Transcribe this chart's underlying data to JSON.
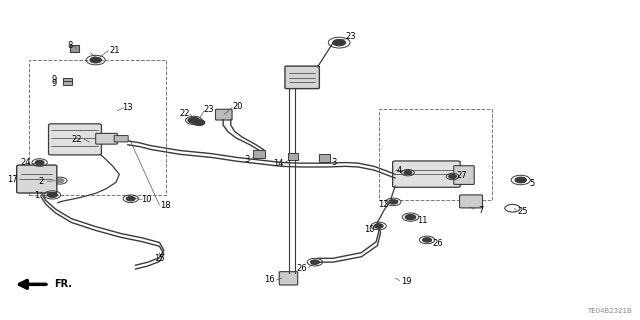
{
  "bg_color": "#ffffff",
  "line_color": "#3a3a3a",
  "diagram_code": "TE04B2321B",
  "label_lines": [
    [
      "8",
      [
        0.12,
        0.148
      ],
      [
        0.128,
        0.135
      ]
    ],
    [
      "21",
      [
        0.178,
        0.148
      ],
      [
        0.168,
        0.135
      ]
    ],
    [
      "9",
      [
        0.093,
        0.225
      ],
      [
        0.105,
        0.23
      ]
    ],
    [
      "9",
      [
        0.093,
        0.245
      ],
      [
        0.108,
        0.248
      ]
    ],
    [
      "13",
      [
        0.178,
        0.31
      ],
      [
        0.168,
        0.32
      ]
    ],
    [
      "1",
      [
        0.068,
        0.385
      ],
      [
        0.082,
        0.388
      ]
    ],
    [
      "10",
      [
        0.215,
        0.375
      ],
      [
        0.205,
        0.382
      ]
    ],
    [
      "2",
      [
        0.075,
        0.435
      ],
      [
        0.09,
        0.432
      ]
    ],
    [
      "18",
      [
        0.248,
        0.358
      ],
      [
        0.238,
        0.365
      ]
    ],
    [
      "24",
      [
        0.042,
        0.49
      ],
      [
        0.06,
        0.492
      ]
    ],
    [
      "17",
      [
        0.04,
        0.56
      ],
      [
        0.06,
        0.558
      ]
    ],
    [
      "22",
      [
        0.152,
        0.558
      ],
      [
        0.142,
        0.552
      ]
    ],
    [
      "15",
      [
        0.248,
        0.718
      ],
      [
        0.248,
        0.705
      ]
    ],
    [
      "22",
      [
        0.298,
        0.635
      ],
      [
        0.302,
        0.625
      ]
    ],
    [
      "23",
      [
        0.308,
        0.608
      ],
      [
        0.31,
        0.618
      ]
    ],
    [
      "20",
      [
        0.36,
        0.645
      ],
      [
        0.348,
        0.638
      ]
    ],
    [
      "3",
      [
        0.405,
        0.528
      ],
      [
        0.408,
        0.518
      ]
    ],
    [
      "14",
      [
        0.462,
        0.488
      ],
      [
        0.462,
        0.5
      ]
    ],
    [
      "3",
      [
        0.51,
        0.518
      ],
      [
        0.51,
        0.508
      ]
    ],
    [
      "16",
      [
        0.44,
        0.108
      ],
      [
        0.452,
        0.118
      ]
    ],
    [
      "23",
      [
        0.53,
        0.048
      ],
      [
        0.528,
        0.062
      ]
    ],
    [
      "26",
      [
        0.49,
        0.165
      ],
      [
        0.492,
        0.178
      ]
    ],
    [
      "19",
      [
        0.618,
        0.118
      ],
      [
        0.61,
        0.13
      ]
    ],
    [
      "10",
      [
        0.598,
        0.28
      ],
      [
        0.592,
        0.292
      ]
    ],
    [
      "26",
      [
        0.672,
        0.238
      ],
      [
        0.665,
        0.248
      ]
    ],
    [
      "11",
      [
        0.648,
        0.31
      ],
      [
        0.64,
        0.318
      ]
    ],
    [
      "12",
      [
        0.612,
        0.368
      ],
      [
        0.618,
        0.378
      ]
    ],
    [
      "7",
      [
        0.738,
        0.355
      ],
      [
        0.728,
        0.362
      ]
    ],
    [
      "25",
      [
        0.808,
        0.348
      ],
      [
        0.8,
        0.355
      ]
    ],
    [
      "27",
      [
        0.712,
        0.44
      ],
      [
        0.705,
        0.448
      ]
    ],
    [
      "5",
      [
        0.822,
        0.435
      ],
      [
        0.812,
        0.442
      ]
    ],
    [
      "4",
      [
        0.64,
        0.468
      ],
      [
        0.638,
        0.458
      ]
    ]
  ]
}
